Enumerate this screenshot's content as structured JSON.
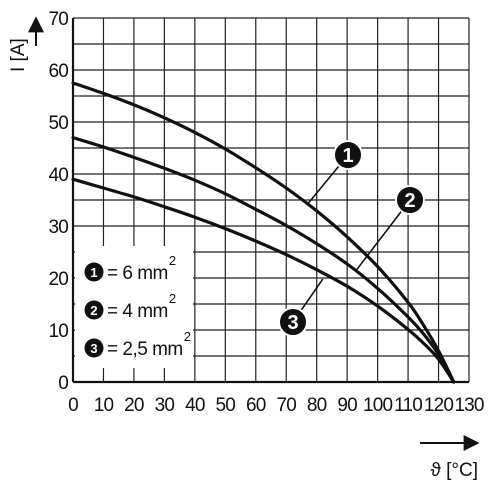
{
  "chart_data": {
    "type": "line",
    "title": "",
    "xlabel": "ϑ [°C]",
    "ylabel": "I [A]",
    "xlim": [
      0,
      130
    ],
    "ylim": [
      0,
      70
    ],
    "x_ticks": [
      "0",
      "10",
      "20",
      "30",
      "40",
      "50",
      "60",
      "70",
      "80",
      "90",
      "100",
      "110",
      "120",
      "130"
    ],
    "y_ticks": [
      "0",
      "10",
      "20",
      "30",
      "40",
      "50",
      "60",
      "70"
    ],
    "grid": true,
    "legend_position": "bottom-left",
    "series": [
      {
        "id": "1",
        "name": "= 6 mm",
        "superscript": "2",
        "color": "#111111",
        "points": [
          [
            0,
            57.5
          ],
          [
            10,
            55.5
          ],
          [
            20,
            53.3
          ],
          [
            30,
            50.8
          ],
          [
            40,
            48
          ],
          [
            50,
            44.8
          ],
          [
            60,
            41.2
          ],
          [
            70,
            37.3
          ],
          [
            80,
            32.9
          ],
          [
            90,
            27.9
          ],
          [
            100,
            22.2
          ],
          [
            110,
            15.3
          ],
          [
            115,
            11
          ],
          [
            120,
            6
          ],
          [
            125,
            0
          ]
        ],
        "callout_at": [
          77,
          34.2
        ]
      },
      {
        "id": "2",
        "name": "= 4 mm",
        "superscript": "2",
        "color": "#111111",
        "points": [
          [
            0,
            47
          ],
          [
            10,
            45.2
          ],
          [
            20,
            43.2
          ],
          [
            30,
            41.1
          ],
          [
            40,
            38.8
          ],
          [
            50,
            36.2
          ],
          [
            60,
            33.2
          ],
          [
            70,
            30.1
          ],
          [
            80,
            26.6
          ],
          [
            90,
            22.7
          ],
          [
            100,
            18
          ],
          [
            110,
            12.5
          ],
          [
            115,
            9.3
          ],
          [
            120,
            5.3
          ],
          [
            125,
            0
          ]
        ],
        "callout_at": [
          93,
          21.5
        ]
      },
      {
        "id": "3",
        "name": "= 2,5 mm",
        "superscript": "2",
        "color": "#111111",
        "points": [
          [
            0,
            39
          ],
          [
            10,
            37.3
          ],
          [
            20,
            35.6
          ],
          [
            30,
            33.7
          ],
          [
            40,
            31.7
          ],
          [
            50,
            29.5
          ],
          [
            60,
            27.1
          ],
          [
            70,
            24.5
          ],
          [
            80,
            21.6
          ],
          [
            90,
            18.4
          ],
          [
            100,
            14.6
          ],
          [
            110,
            10.1
          ],
          [
            115,
            7.5
          ],
          [
            120,
            4.4
          ],
          [
            125,
            0
          ]
        ],
        "callout_at": [
          82,
          19.8
        ]
      }
    ]
  }
}
